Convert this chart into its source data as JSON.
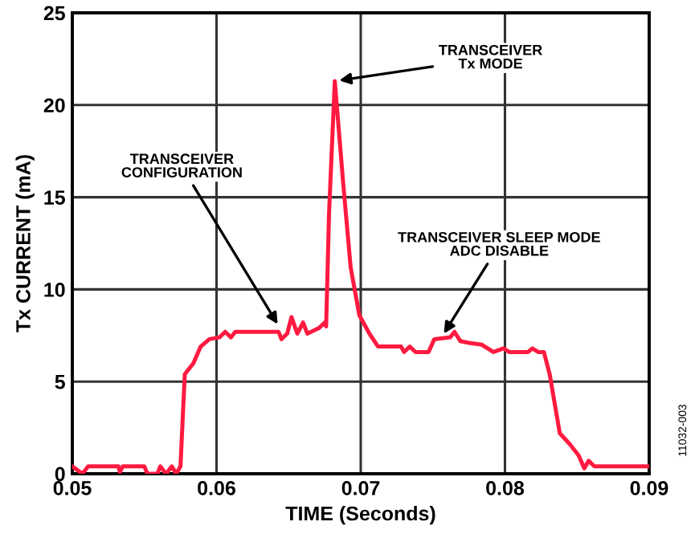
{
  "chart_data": {
    "type": "line",
    "xlabel": "TIME (Seconds)",
    "ylabel": "Tx CURRENT (mA)",
    "xlim": [
      0.05,
      0.09
    ],
    "ylim": [
      0,
      25
    ],
    "xticks": [
      0.05,
      0.06,
      0.07,
      0.08,
      0.09
    ],
    "yticks": [
      0,
      5,
      10,
      15,
      20,
      25
    ],
    "grid": true,
    "line_style": "solid",
    "series": [
      {
        "color": "#ff1a40",
        "x": [
          0.05,
          0.0507,
          0.0511,
          0.0532,
          0.0533,
          0.0535,
          0.055,
          0.0552,
          0.0559,
          0.0561,
          0.0565,
          0.0569,
          0.0572,
          0.0575,
          0.0578,
          0.0584,
          0.0589,
          0.0595,
          0.0602,
          0.0606,
          0.061,
          0.0613,
          0.0643,
          0.0645,
          0.0649,
          0.0652,
          0.0656,
          0.066,
          0.0663,
          0.0671,
          0.0675,
          0.0676,
          0.0678,
          0.0682,
          0.0688,
          0.0693,
          0.0699,
          0.0706,
          0.0712,
          0.0728,
          0.073,
          0.0734,
          0.0738,
          0.0747,
          0.0751,
          0.0762,
          0.0765,
          0.0769,
          0.0775,
          0.0784,
          0.0792,
          0.0799,
          0.0803,
          0.0816,
          0.0819,
          0.0823,
          0.0827,
          0.0831,
          0.0838,
          0.0845,
          0.0851,
          0.0855,
          0.0858,
          0.0862,
          0.09
        ],
        "values": [
          0.4,
          0,
          0.4,
          0.4,
          0.1,
          0.4,
          0.4,
          0,
          0,
          0.4,
          0,
          0.4,
          0,
          0.4,
          5.4,
          6.0,
          6.9,
          7.3,
          7.4,
          7.7,
          7.4,
          7.7,
          7.7,
          7.3,
          7.6,
          8.5,
          7.6,
          8.2,
          7.6,
          7.9,
          8.2,
          8.0,
          14.1,
          21.3,
          15.6,
          11.2,
          8.6,
          7.6,
          6.9,
          6.9,
          6.6,
          6.9,
          6.6,
          6.6,
          7.3,
          7.4,
          7.7,
          7.2,
          7.1,
          7.0,
          6.6,
          6.8,
          6.6,
          6.6,
          6.8,
          6.6,
          6.6,
          5.4,
          2.2,
          1.6,
          1.0,
          0.3,
          0.7,
          0.4,
          0.4
        ]
      }
    ],
    "annotations": [
      {
        "text": "TRANSCEIVER\nTx MODE",
        "x": 0.0682,
        "y": 21.3
      },
      {
        "text": "TRANSCEIVER\nCONFIGURATION",
        "x": 0.0644,
        "y": 7.9
      },
      {
        "text": "TRANSCEIVER SLEEP MODE\nADC DISABLE",
        "x": 0.0756,
        "y": 7.4
      },
      "11032-003"
    ]
  }
}
